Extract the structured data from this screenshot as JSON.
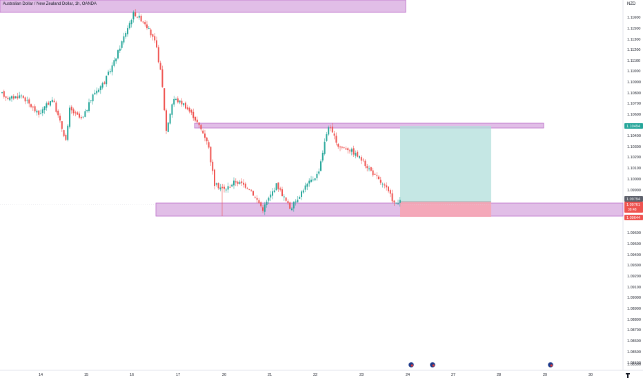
{
  "header": {
    "title": "Australian Dollar / New Zealand Dollar, 1h, OANDA",
    "currency": "NZD"
  },
  "price_axis": {
    "labels": [
      "1.11600",
      "1.11500",
      "1.11300",
      "1.11200",
      "1.11100",
      "1.11000",
      "1.10900",
      "1.10800",
      "1.10700",
      "1.10600",
      "1.10400",
      "1.10300",
      "1.10200",
      "1.10100",
      "1.10000",
      "1.09900",
      "1.09600",
      "1.09500",
      "1.09400",
      "1.09300",
      "1.09200",
      "1.09100",
      "1.09000",
      "1.08900",
      "1.08800",
      "1.08700",
      "1.08600",
      "1.08500",
      "1.08400",
      "1.08300"
    ],
    "badges": {
      "target": "1.10494",
      "last": "1.09794",
      "current_price": "1.09761",
      "current_time": "38:48",
      "stop": "1.09644"
    }
  },
  "time_axis": {
    "labels": [
      "14",
      "15",
      "16",
      "17",
      "20",
      "21",
      "22",
      "23",
      "24",
      "27",
      "28",
      "29",
      "30"
    ]
  },
  "colors": {
    "up": "#26a69a",
    "down": "#ef5350",
    "zone_fill": "#e1bee7",
    "zone_border": "#ba68c8",
    "target_fill": "#b2dfdb",
    "stop_fill": "#f7a4b0",
    "badge_target": "#26a69a",
    "badge_stop": "#ef5350",
    "badge_last": "#5d606b"
  },
  "icons": [
    "flag-icon",
    "flag-icon",
    "flag-icon",
    "tradingview-logo-icon"
  ]
}
